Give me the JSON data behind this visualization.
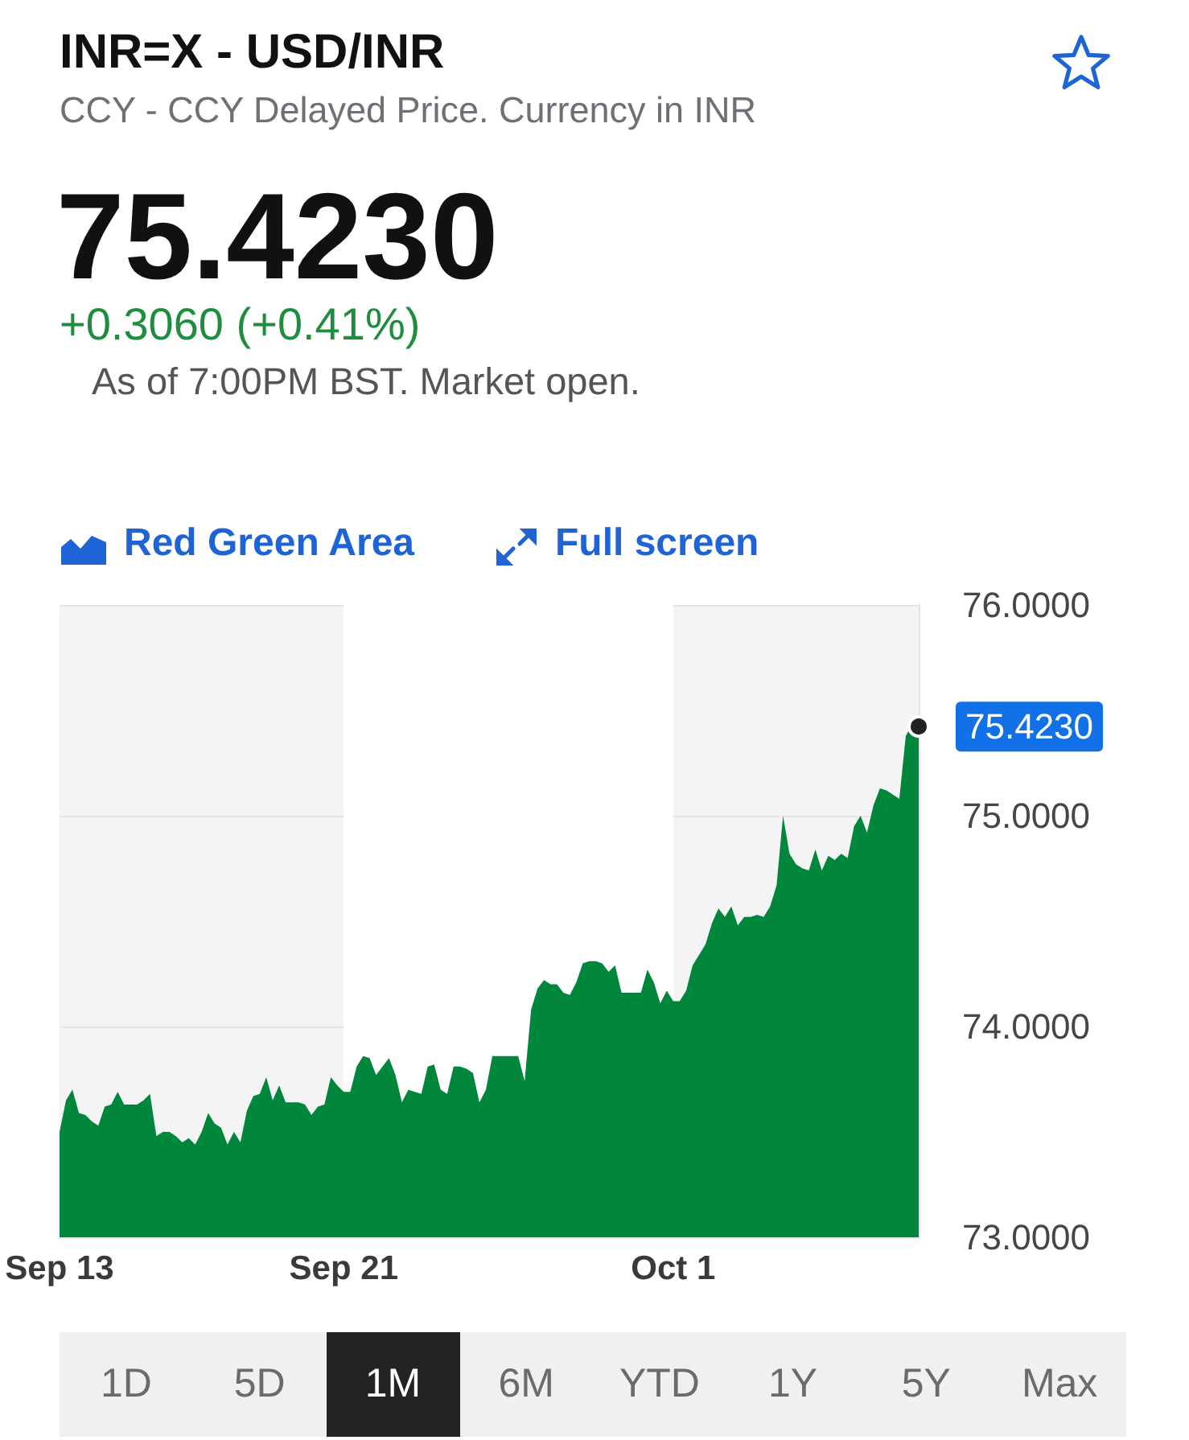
{
  "chart_data": {
    "type": "area",
    "title": "INR=X - USD/INR",
    "subtitle": "CCY - CCY Delayed Price. Currency in INR",
    "annotations": [
      "75.4230",
      "+0.3060 (+0.41%)",
      "As of 7:00PM BST. Market open.",
      "Red Green Area",
      "Full screen",
      "1D",
      "5D",
      "1M",
      "6M",
      "YTD",
      "1Y",
      "5Y",
      "Max"
    ],
    "categories": [
      "Sep 13",
      null,
      null,
      null,
      null,
      null,
      null,
      null,
      null,
      null,
      null,
      null,
      null,
      null,
      null,
      null,
      null,
      null,
      null,
      null,
      null,
      null,
      null,
      null,
      null,
      null,
      null,
      null,
      null,
      null,
      null,
      null,
      null,
      null,
      null,
      null,
      null,
      null,
      null,
      null,
      null,
      null,
      null,
      null,
      "Sep 21",
      null,
      null,
      null,
      null,
      null,
      null,
      null,
      null,
      null,
      null,
      null,
      null,
      null,
      null,
      null,
      null,
      null,
      null,
      null,
      null,
      null,
      null,
      null,
      null,
      null,
      null,
      null,
      null,
      null,
      null,
      null,
      null,
      null,
      null,
      null,
      null,
      null,
      null,
      null,
      null,
      null,
      null,
      null,
      null,
      null,
      null,
      null,
      null,
      null,
      null,
      "Oct 1",
      null,
      null,
      null,
      null,
      null,
      null,
      null,
      null,
      null,
      null,
      null,
      null,
      null,
      null,
      null,
      null,
      null,
      null,
      null,
      null,
      null,
      null,
      null,
      null,
      null,
      null,
      null,
      null,
      null,
      null,
      null,
      null,
      null,
      null,
      null,
      null,
      null,
      null
    ],
    "values": [
      73.5,
      73.65,
      73.7,
      73.59,
      73.58,
      73.55,
      73.53,
      73.62,
      73.63,
      73.69,
      73.63,
      73.63,
      73.63,
      73.65,
      73.68,
      73.48,
      73.5,
      73.5,
      73.48,
      73.45,
      73.47,
      73.44,
      73.5,
      73.59,
      73.54,
      73.52,
      73.44,
      73.5,
      73.45,
      73.6,
      73.67,
      73.68,
      73.76,
      73.65,
      73.72,
      73.64,
      73.64,
      73.64,
      73.63,
      73.58,
      73.62,
      73.63,
      73.76,
      73.72,
      73.69,
      73.69,
      73.81,
      73.86,
      73.85,
      73.77,
      73.81,
      73.85,
      73.77,
      73.64,
      73.7,
      73.69,
      73.68,
      73.81,
      73.82,
      73.7,
      73.68,
      73.81,
      73.81,
      73.8,
      73.78,
      73.64,
      73.7,
      73.86,
      73.86,
      73.86,
      73.86,
      73.86,
      73.74,
      74.08,
      74.18,
      74.22,
      74.2,
      74.2,
      74.16,
      74.15,
      74.21,
      74.3,
      74.31,
      74.31,
      74.3,
      74.26,
      74.29,
      74.16,
      74.16,
      74.16,
      74.16,
      74.27,
      74.21,
      74.11,
      74.17,
      74.12,
      74.12,
      74.17,
      74.29,
      74.34,
      74.39,
      74.49,
      74.56,
      74.52,
      74.57,
      74.48,
      74.52,
      74.52,
      74.53,
      74.52,
      74.57,
      74.67,
      75.0,
      74.82,
      74.77,
      74.75,
      74.74,
      74.84,
      74.74,
      74.81,
      74.79,
      74.82,
      74.8,
      74.95,
      75.0,
      74.92,
      75.05,
      75.13,
      75.12,
      75.1,
      75.08,
      75.38,
      75.43,
      75.423
    ],
    "value_labels": [
      null,
      null,
      null,
      null,
      null,
      null,
      null,
      null,
      null,
      null,
      null,
      null,
      null,
      null,
      null,
      null,
      null,
      null,
      null,
      null,
      null,
      null,
      null,
      null,
      null,
      null,
      null,
      null,
      null,
      null,
      null,
      null,
      null,
      null,
      null,
      null,
      null,
      null,
      null,
      null,
      null,
      null,
      null,
      null,
      null,
      null,
      null,
      null,
      null,
      null,
      null,
      null,
      null,
      null,
      null,
      null,
      null,
      null,
      null,
      null,
      null,
      null,
      null,
      null,
      null,
      null,
      null,
      null,
      null,
      null,
      null,
      null,
      null,
      null,
      null,
      null,
      null,
      null,
      null,
      null,
      null,
      null,
      null,
      null,
      null,
      null,
      null,
      null,
      null,
      null,
      null,
      null,
      null,
      null,
      null,
      null,
      null,
      null,
      null,
      null,
      null,
      null,
      null,
      null,
      null,
      null,
      null,
      null,
      null,
      null,
      null,
      null,
      null,
      null,
      null,
      null,
      null,
      null,
      null,
      null,
      null,
      null,
      null,
      null,
      null,
      null,
      null,
      null,
      null,
      null,
      null,
      null,
      null,
      "75.4230"
    ],
    "color": "#00873c",
    "ylim": [
      73,
      76
    ],
    "yticks": [
      {
        "value": 73,
        "label": "73.0000"
      },
      {
        "value": 74,
        "label": "74.0000"
      },
      {
        "value": 75,
        "label": "75.0000"
      },
      {
        "value": 76,
        "label": "76.0000"
      }
    ],
    "grid": "y",
    "marker": "none",
    "bands": [
      {
        "axis": "x",
        "from": "Sep 21",
        "to": "Oct 1",
        "color": "#ffffff"
      }
    ]
  }
}
